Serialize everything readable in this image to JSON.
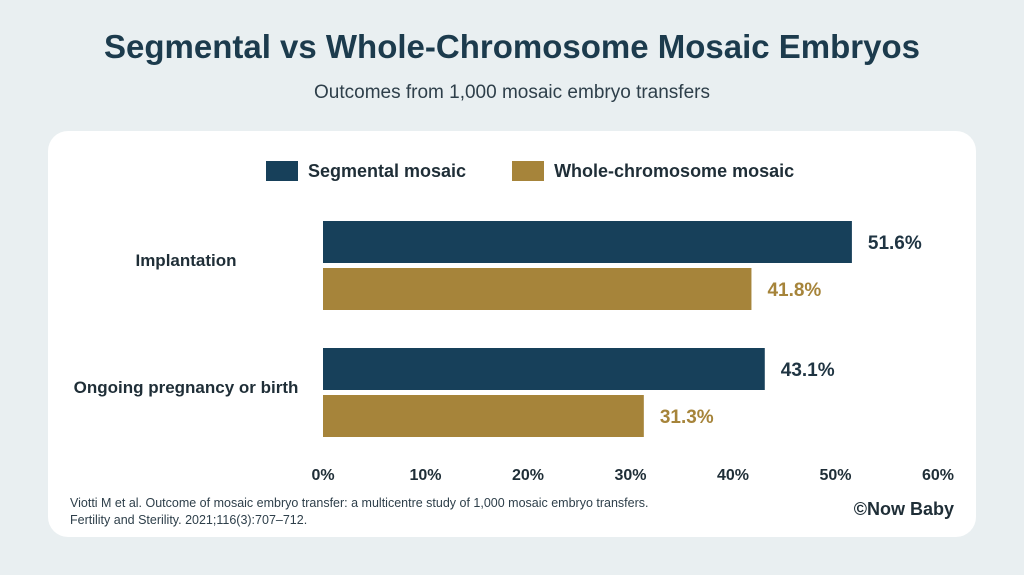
{
  "title": "Segmental vs Whole-Chromosome Mosaic Embryos",
  "subtitle": "Outcomes from 1,000 mosaic embryo transfers",
  "citation_line1": "Viotti M et al. Outcome of mosaic embryo transfer: a multicentre study of 1,000 mosaic embryo transfers.",
  "citation_line2": "Fertility and Sterility. 2021;116(3):707–712.",
  "credit": "©Now Baby",
  "colors": {
    "segmental": "#17405a",
    "whole": "#a6843a"
  },
  "chart_data": {
    "type": "bar",
    "orientation": "horizontal",
    "categories": [
      "Implantation",
      "Ongoing pregnancy or birth"
    ],
    "series": [
      {
        "name": "Segmental mosaic",
        "values": [
          51.6,
          43.1
        ],
        "labels": [
          "51.6%",
          "43.1%"
        ]
      },
      {
        "name": "Whole-chromosome mosaic",
        "values": [
          41.8,
          31.3
        ],
        "labels": [
          "41.8%",
          "31.3%"
        ]
      }
    ],
    "xlim": [
      0,
      60
    ],
    "xticks": [
      "0%",
      "10%",
      "20%",
      "30%",
      "40%",
      "50%",
      "60%"
    ],
    "legend": "top",
    "grid": false
  }
}
